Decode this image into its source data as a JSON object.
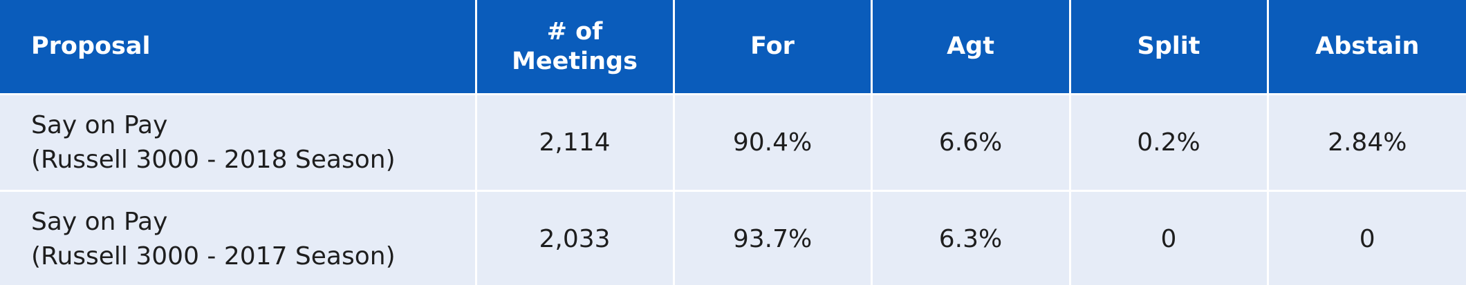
{
  "table": {
    "header": [
      [
        "Proposal"
      ],
      [
        "# of",
        "Meetings"
      ],
      [
        "For"
      ],
      [
        "Agt"
      ],
      [
        "Split"
      ],
      [
        "Abstain"
      ]
    ],
    "rows": [
      [
        [
          "Say on Pay",
          "(Russell 3000 - 2018 Season)"
        ],
        [
          "2,114"
        ],
        [
          "90.4%"
        ],
        [
          "6.6%"
        ],
        [
          "0.2%"
        ],
        [
          "2.84%"
        ]
      ],
      [
        [
          "Say on Pay",
          "(Russell 3000 - 2017 Season)"
        ],
        [
          "2,033"
        ],
        [
          "93.7%"
        ],
        [
          "6.3%"
        ],
        [
          "0"
        ],
        [
          "0"
        ]
      ]
    ]
  }
}
